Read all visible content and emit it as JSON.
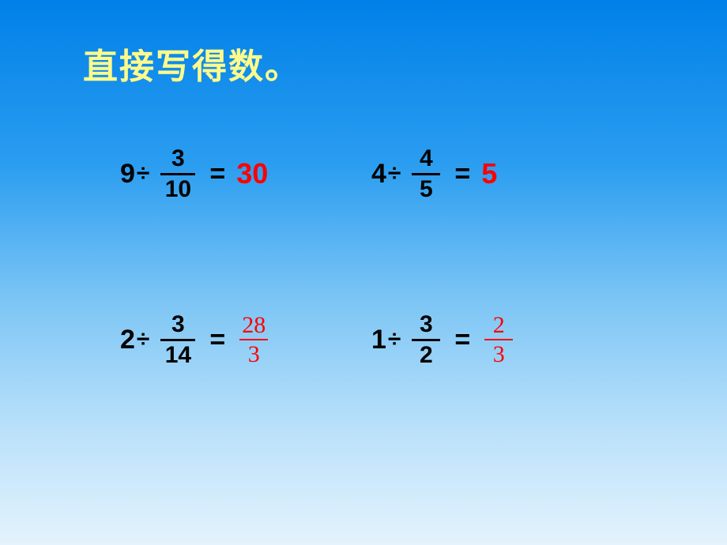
{
  "title": "直接写得数。",
  "background": {
    "gradient_colors": [
      "#0080e8",
      "#2a9df0",
      "#7cc5f5",
      "#b8e0fa",
      "#e4f3fd"
    ],
    "direction": "to bottom"
  },
  "title_style": {
    "color": "#fffb8a",
    "fontsize": 44,
    "weight": "bold"
  },
  "text_color": "#000000",
  "answer_color": "#ff0000",
  "equations": {
    "eq1": {
      "whole": "9",
      "op": "÷",
      "frac_num": "3",
      "frac_den": "10",
      "eq": "=",
      "answer_type": "int",
      "answer": "30"
    },
    "eq2": {
      "whole": "4",
      "op": "÷",
      "frac_num": "4",
      "frac_den": "5",
      "eq": "=",
      "answer_type": "int",
      "answer": "5"
    },
    "eq3": {
      "whole": "2",
      "op": "÷",
      "frac_num": "3",
      "frac_den": "14",
      "eq": "=",
      "answer_type": "frac",
      "ans_num": "28",
      "ans_den": "3"
    },
    "eq4": {
      "whole": "1",
      "op": "÷",
      "frac_num": "3",
      "frac_den": "2",
      "eq": "=",
      "answer_type": "frac",
      "ans_num": "2",
      "ans_den": "3"
    }
  }
}
